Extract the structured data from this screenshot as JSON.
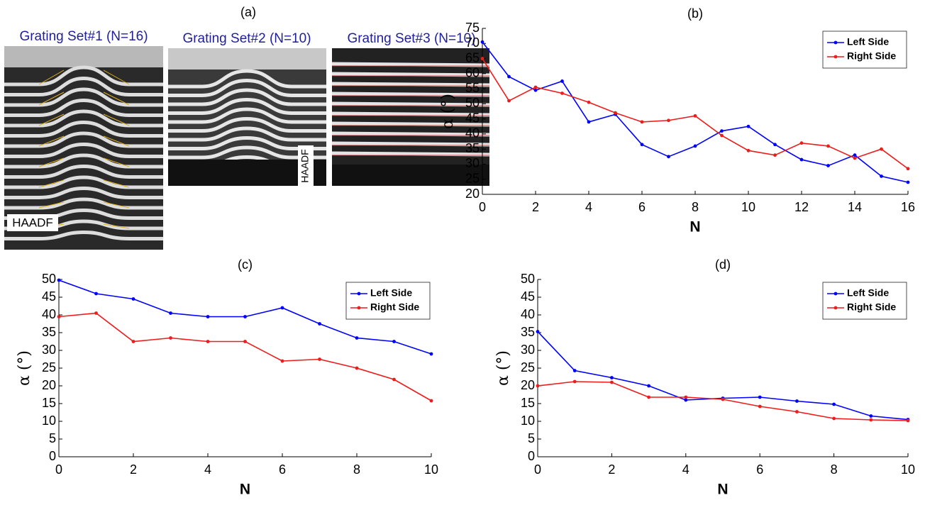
{
  "figure": {
    "panel_label": "(a)",
    "images": [
      {
        "title": "Grating Set#1 (N=16)",
        "label": "HAADF"
      },
      {
        "title": "Grating Set#2 (N=10)",
        "label": "HAADF"
      },
      {
        "title": "Grating Set#3 (N=10)"
      }
    ]
  },
  "chart_data": [
    {
      "type": "line",
      "title": "(b)",
      "xlabel": "N",
      "ylabel": "α (°)",
      "x": [
        0,
        1,
        2,
        3,
        4,
        5,
        6,
        7,
        8,
        9,
        10,
        11,
        12,
        13,
        14,
        15,
        16
      ],
      "series": [
        {
          "name": "Left Side",
          "color": "#0000ff",
          "values": [
            70.5,
            59,
            54.5,
            57.5,
            44,
            46.5,
            36.5,
            32.5,
            36,
            41,
            42.5,
            36.5,
            31.5,
            29.5,
            33,
            26,
            24
          ]
        },
        {
          "name": "Right Side",
          "color": "#ee1c1c",
          "values": [
            65,
            51,
            55.5,
            53.5,
            50.5,
            47,
            44,
            44.5,
            46,
            39.5,
            34.5,
            33,
            37,
            36,
            32,
            35,
            28.5
          ]
        }
      ],
      "xlim": [
        0,
        16
      ],
      "ylim": [
        20,
        75
      ],
      "xticks": [
        0,
        2,
        4,
        6,
        8,
        10,
        12,
        14,
        16
      ],
      "yticks": [
        20,
        25,
        30,
        35,
        40,
        45,
        50,
        55,
        60,
        65,
        70,
        75
      ],
      "legend": "upper right"
    },
    {
      "type": "line",
      "title": "(c)",
      "xlabel": "N",
      "ylabel": "α (°)",
      "x": [
        0,
        1,
        2,
        3,
        4,
        5,
        6,
        7,
        8,
        9,
        10
      ],
      "series": [
        {
          "name": "Left Side",
          "color": "#0000ff",
          "values": [
            49.8,
            46,
            44.5,
            40.5,
            39.5,
            39.5,
            42,
            37.5,
            33.5,
            32.5,
            29
          ]
        },
        {
          "name": "Right Side",
          "color": "#ee1c1c",
          "values": [
            39.5,
            40.5,
            32.5,
            33.5,
            32.5,
            32.5,
            27,
            27.5,
            25,
            21.8,
            15.8
          ]
        }
      ],
      "xlim": [
        0,
        10
      ],
      "ylim": [
        0,
        50
      ],
      "xticks": [
        0,
        2,
        4,
        6,
        8,
        10
      ],
      "yticks": [
        0,
        5,
        10,
        15,
        20,
        25,
        30,
        35,
        40,
        45,
        50
      ],
      "legend": "upper right"
    },
    {
      "type": "line",
      "title": "(d)",
      "xlabel": "N",
      "ylabel": "α (°)",
      "x": [
        0,
        1,
        2,
        3,
        4,
        5,
        6,
        7,
        8,
        9,
        10
      ],
      "series": [
        {
          "name": "Left Side",
          "color": "#0000ff",
          "values": [
            35.3,
            24.3,
            22.3,
            20,
            16,
            16.5,
            16.8,
            15.7,
            14.8,
            11.5,
            10.5
          ]
        },
        {
          "name": "Right Side",
          "color": "#ee1c1c",
          "values": [
            20,
            21.2,
            21,
            16.8,
            16.8,
            16.2,
            14.2,
            12.7,
            10.8,
            10.4,
            10.2
          ]
        }
      ],
      "xlim": [
        0,
        10
      ],
      "ylim": [
        0,
        50
      ],
      "xticks": [
        0,
        2,
        4,
        6,
        8,
        10
      ],
      "yticks": [
        0,
        5,
        10,
        15,
        20,
        25,
        30,
        35,
        40,
        45,
        50
      ],
      "legend": "upper right"
    }
  ]
}
